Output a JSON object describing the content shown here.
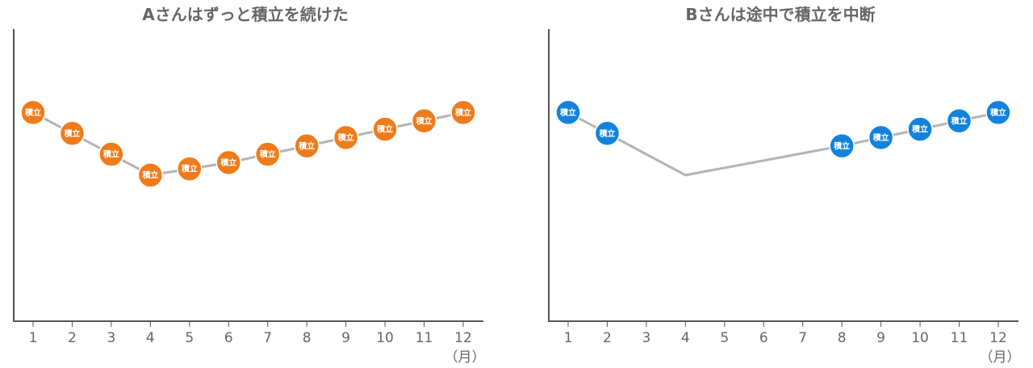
{
  "unit_label": "（月）",
  "marker_label": "積立",
  "colors": {
    "axis": "#555555",
    "line": "#b3b3b3",
    "text": "#666666"
  },
  "chart_data": [
    {
      "type": "line",
      "title": "Aさんはずっと積立を続けた",
      "categories": [
        "1",
        "2",
        "3",
        "4",
        "5",
        "6",
        "7",
        "8",
        "9",
        "10",
        "11",
        "12"
      ],
      "series": [
        {
          "values": [
            100,
            90,
            80,
            70,
            73,
            76,
            80,
            84,
            88,
            92,
            96,
            100
          ],
          "markers": [
            true,
            true,
            true,
            true,
            true,
            true,
            true,
            true,
            true,
            true,
            true,
            true
          ]
        }
      ],
      "marker_color": "#f07b1b",
      "ylim": [
        0,
        140
      ],
      "grid": false
    },
    {
      "type": "line",
      "title": "Bさんは途中で積立を中断",
      "categories": [
        "1",
        "2",
        "3",
        "4",
        "5",
        "6",
        "7",
        "8",
        "9",
        "10",
        "11",
        "12"
      ],
      "series": [
        {
          "values": [
            100,
            90,
            null,
            70,
            null,
            null,
            null,
            84,
            88,
            92,
            96,
            100
          ],
          "markers": [
            true,
            true,
            false,
            false,
            false,
            false,
            false,
            true,
            true,
            true,
            true,
            true
          ]
        }
      ],
      "marker_color": "#1282dd",
      "ylim": [
        0,
        140
      ],
      "grid": false
    }
  ]
}
